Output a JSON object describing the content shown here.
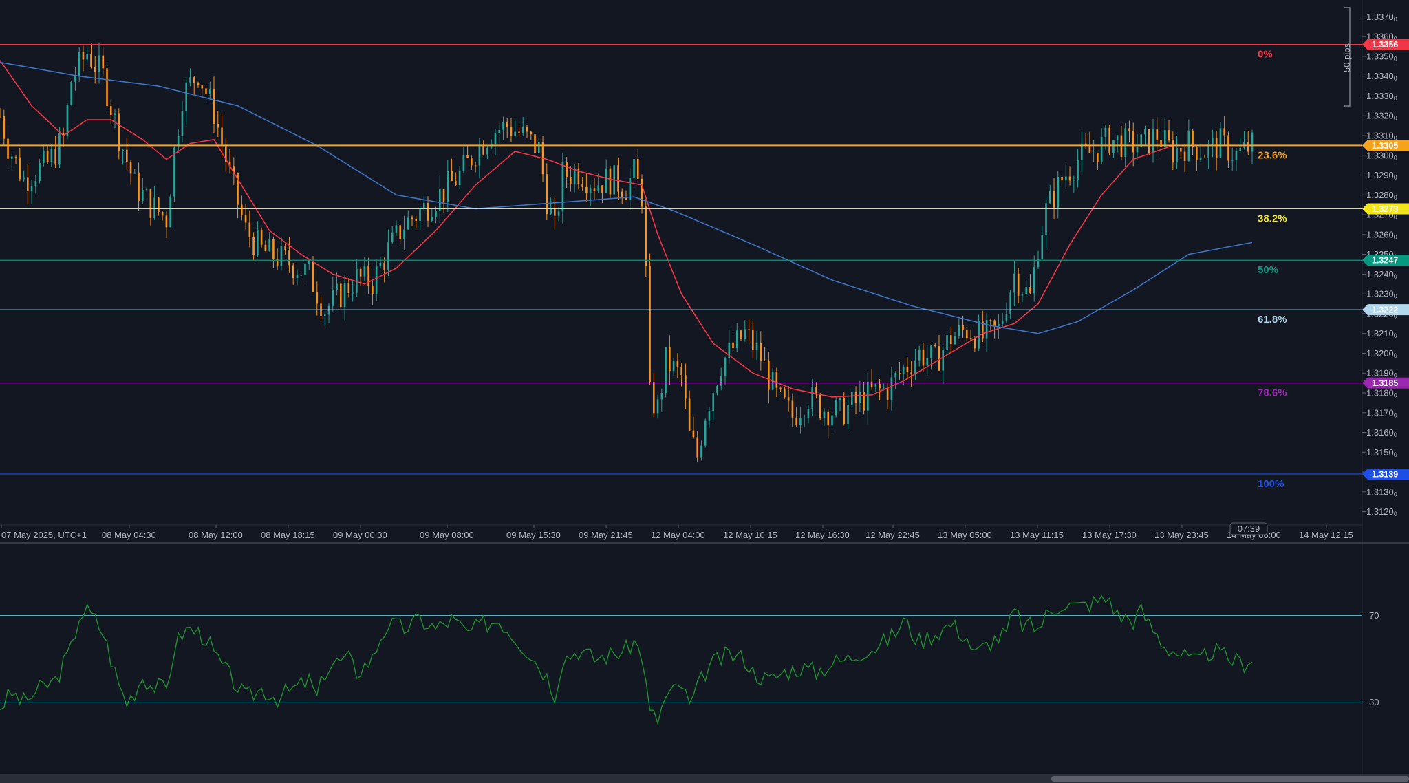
{
  "chart_data": [
    {
      "type": "candlestick",
      "title": "",
      "timezone_label": "07 May 2025, UTC+1",
      "x_ticks": [
        "07 May 2025, UTC+1",
        "08 May 04:30",
        "08 May 12:00",
        "08 May 18:15",
        "09 May 00:30",
        "09 May 08:00",
        "09 May 15:30",
        "09 May 21:45",
        "12 May 04:00",
        "12 May 10:15",
        "12 May 16:30",
        "12 May 22:45",
        "13 May 05:00",
        "13 May 11:15",
        "13 May 17:30",
        "13 May 23:45",
        "14 May 06:00",
        "14 May 12:15"
      ],
      "y_range": [
        1.3115,
        1.3375
      ],
      "y_ticks": [
        "1.3370",
        "1.3360",
        "1.3350",
        "1.3340",
        "1.3330",
        "1.3320",
        "1.3310",
        "1.3300",
        "1.3290",
        "1.3280",
        "1.3270",
        "1.3260",
        "1.3250",
        "1.3240",
        "1.3230",
        "1.3220",
        "1.3210",
        "1.3200",
        "1.3190",
        "1.3180",
        "1.3170",
        "1.3160",
        "1.3150",
        "1.3140",
        "1.3130",
        "1.3120"
      ],
      "tick_suffix": "0",
      "price_path": [
        [
          0,
          1.332
        ],
        [
          2,
          1.3305
        ],
        [
          6,
          1.3288
        ],
        [
          12,
          1.3296
        ],
        [
          16,
          1.3308
        ],
        [
          18,
          1.3338
        ],
        [
          22,
          1.3352
        ],
        [
          26,
          1.334
        ],
        [
          30,
          1.331
        ],
        [
          34,
          1.3285
        ],
        [
          38,
          1.3275
        ],
        [
          42,
          1.3268
        ],
        [
          44,
          1.3302
        ],
        [
          46,
          1.333
        ],
        [
          50,
          1.3342
        ],
        [
          54,
          1.3322
        ],
        [
          58,
          1.329
        ],
        [
          62,
          1.3262
        ],
        [
          66,
          1.3252
        ],
        [
          72,
          1.3247
        ],
        [
          78,
          1.324
        ],
        [
          82,
          1.3222
        ],
        [
          86,
          1.323
        ],
        [
          90,
          1.3238
        ],
        [
          94,
          1.3236
        ],
        [
          98,
          1.3252
        ],
        [
          102,
          1.3265
        ],
        [
          108,
          1.3275
        ],
        [
          112,
          1.3282
        ],
        [
          116,
          1.329
        ],
        [
          120,
          1.3302
        ],
        [
          124,
          1.3312
        ],
        [
          128,
          1.3315
        ],
        [
          132,
          1.331
        ],
        [
          136,
          1.3303
        ],
        [
          138,
          1.3278
        ],
        [
          140,
          1.3262
        ],
        [
          142,
          1.329
        ],
        [
          146,
          1.3292
        ],
        [
          150,
          1.3286
        ],
        [
          154,
          1.3288
        ],
        [
          158,
          1.3284
        ],
        [
          160,
          1.3291
        ],
        [
          162,
          1.328
        ],
        [
          163,
          1.324
        ],
        [
          164,
          1.3178
        ],
        [
          166,
          1.3172
        ],
        [
          168,
          1.3196
        ],
        [
          172,
          1.3188
        ],
        [
          174,
          1.3158
        ],
        [
          176,
          1.3148
        ],
        [
          178,
          1.317
        ],
        [
          182,
          1.3195
        ],
        [
          186,
          1.3205
        ],
        [
          188,
          1.321
        ],
        [
          192,
          1.3198
        ],
        [
          196,
          1.3178
        ],
        [
          200,
          1.3168
        ],
        [
          204,
          1.3178
        ],
        [
          208,
          1.3172
        ],
        [
          212,
          1.317
        ],
        [
          216,
          1.3175
        ],
        [
          220,
          1.318
        ],
        [
          224,
          1.3182
        ],
        [
          228,
          1.3192
        ],
        [
          232,
          1.32
        ],
        [
          236,
          1.3196
        ],
        [
          240,
          1.3208
        ],
        [
          244,
          1.3212
        ],
        [
          248,
          1.3208
        ],
        [
          252,
          1.3212
        ],
        [
          256,
          1.324
        ],
        [
          260,
          1.3228
        ],
        [
          262,
          1.3255
        ],
        [
          264,
          1.3272
        ],
        [
          268,
          1.3288
        ],
        [
          272,
          1.3298
        ],
        [
          276,
          1.3302
        ],
        [
          280,
          1.3308
        ],
        [
          284,
          1.3306
        ],
        [
          288,
          1.3305
        ],
        [
          292,
          1.331
        ],
        [
          296,
          1.3302
        ],
        [
          300,
          1.3306
        ],
        [
          304,
          1.3302
        ],
        [
          308,
          1.3306
        ],
        [
          312,
          1.33
        ],
        [
          316,
          1.3305
        ]
      ],
      "moving_averages": [
        {
          "color": "#f23645",
          "points": [
            [
              0,
              1.3348
            ],
            [
              8,
              1.3325
            ],
            [
              16,
              1.331
            ],
            [
              22,
              1.3318
            ],
            [
              28,
              1.3318
            ],
            [
              36,
              1.3308
            ],
            [
              42,
              1.3298
            ],
            [
              48,
              1.3306
            ],
            [
              54,
              1.3308
            ],
            [
              60,
              1.3288
            ],
            [
              68,
              1.3262
            ],
            [
              76,
              1.325
            ],
            [
              84,
              1.324
            ],
            [
              92,
              1.3235
            ],
            [
              100,
              1.3243
            ],
            [
              110,
              1.3262
            ],
            [
              120,
              1.3285
            ],
            [
              130,
              1.3302
            ],
            [
              138,
              1.3298
            ],
            [
              146,
              1.3292
            ],
            [
              154,
              1.3288
            ],
            [
              162,
              1.3285
            ],
            [
              166,
              1.326
            ],
            [
              172,
              1.323
            ],
            [
              180,
              1.3205
            ],
            [
              190,
              1.319
            ],
            [
              200,
              1.3182
            ],
            [
              210,
              1.3178
            ],
            [
              220,
              1.3179
            ],
            [
              228,
              1.3186
            ],
            [
              238,
              1.3198
            ],
            [
              248,
              1.321
            ],
            [
              256,
              1.3215
            ],
            [
              262,
              1.3225
            ],
            [
              270,
              1.3255
            ],
            [
              278,
              1.328
            ],
            [
              286,
              1.3298
            ],
            [
              296,
              1.3305
            ],
            [
              316,
              1.3305
            ]
          ]
        },
        {
          "color": "#3d73c6",
          "points": [
            [
              0,
              1.3347
            ],
            [
              20,
              1.334
            ],
            [
              40,
              1.3335
            ],
            [
              60,
              1.3325
            ],
            [
              80,
              1.3305
            ],
            [
              100,
              1.328
            ],
            [
              120,
              1.3273
            ],
            [
              140,
              1.3276
            ],
            [
              160,
              1.3279
            ],
            [
              170,
              1.3272
            ],
            [
              190,
              1.3255
            ],
            [
              210,
              1.3237
            ],
            [
              230,
              1.3224
            ],
            [
              250,
              1.3214
            ],
            [
              262,
              1.321
            ],
            [
              272,
              1.3216
            ],
            [
              286,
              1.3232
            ],
            [
              300,
              1.325
            ],
            [
              316,
              1.3256
            ]
          ]
        }
      ],
      "fibonacci": [
        {
          "label": "0%",
          "price": 1.3356,
          "price_label": "1.3356",
          "color": "#f23645"
        },
        {
          "label": "23.6%",
          "price": 1.3305,
          "price_label": "1.3305",
          "color": "#f7a21b"
        },
        {
          "label": "38.2%",
          "price": 1.3273,
          "price_label": "1.3273",
          "color": "#f5e61c"
        },
        {
          "label": "50%",
          "price": 1.3247,
          "price_label": "1.3247",
          "color": "#089981"
        },
        {
          "label": "61.8%",
          "price": 1.3222,
          "price_label": "1.3222",
          "color": "#b2d8ee"
        },
        {
          "label": "78.6%",
          "price": 1.3185,
          "price_label": "1.3185",
          "color": "#9c27b0"
        },
        {
          "label": "100%",
          "price": 1.3139,
          "price_label": "1.3139",
          "color": "#1e4ee8"
        }
      ],
      "measure_label": "50 pips",
      "countdown_label": "07:39",
      "candle_up_color": "#26a69a",
      "candle_down_color": "#f7931e"
    },
    {
      "type": "line",
      "indicator": "oscillator",
      "y_range": [
        0,
        100
      ],
      "levels": [
        70,
        30
      ],
      "level_labels": [
        "70",
        "30"
      ],
      "line_color": "#1f8f2f",
      "points": [
        [
          0,
          28
        ],
        [
          3,
          34
        ],
        [
          6,
          30
        ],
        [
          10,
          36
        ],
        [
          14,
          40
        ],
        [
          18,
          55
        ],
        [
          20,
          70
        ],
        [
          22,
          72
        ],
        [
          24,
          68
        ],
        [
          26,
          62
        ],
        [
          28,
          50
        ],
        [
          30,
          38
        ],
        [
          32,
          30
        ],
        [
          34,
          35
        ],
        [
          36,
          42
        ],
        [
          38,
          38
        ],
        [
          42,
          36
        ],
        [
          44,
          55
        ],
        [
          46,
          62
        ],
        [
          48,
          64
        ],
        [
          52,
          60
        ],
        [
          54,
          52
        ],
        [
          58,
          42
        ],
        [
          62,
          32
        ],
        [
          66,
          36
        ],
        [
          70,
          32
        ],
        [
          74,
          36
        ],
        [
          78,
          40
        ],
        [
          80,
          32
        ],
        [
          82,
          44
        ],
        [
          84,
          48
        ],
        [
          88,
          50
        ],
        [
          90,
          44
        ],
        [
          94,
          50
        ],
        [
          96,
          60
        ],
        [
          98,
          66
        ],
        [
          102,
          64
        ],
        [
          106,
          68
        ],
        [
          110,
          64
        ],
        [
          114,
          68
        ],
        [
          118,
          62
        ],
        [
          122,
          66
        ],
        [
          126,
          68
        ],
        [
          130,
          60
        ],
        [
          134,
          52
        ],
        [
          138,
          42
        ],
        [
          140,
          34
        ],
        [
          142,
          50
        ],
        [
          146,
          54
        ],
        [
          150,
          50
        ],
        [
          154,
          52
        ],
        [
          158,
          54
        ],
        [
          160,
          58
        ],
        [
          162,
          52
        ],
        [
          163,
          38
        ],
        [
          164,
          25
        ],
        [
          166,
          22
        ],
        [
          168,
          32
        ],
        [
          172,
          38
        ],
        [
          174,
          28
        ],
        [
          176,
          36
        ],
        [
          178,
          44
        ],
        [
          180,
          48
        ],
        [
          184,
          52
        ],
        [
          188,
          50
        ],
        [
          190,
          44
        ],
        [
          194,
          40
        ],
        [
          198,
          44
        ],
        [
          202,
          46
        ],
        [
          206,
          44
        ],
        [
          210,
          48
        ],
        [
          214,
          50
        ],
        [
          218,
          54
        ],
        [
          222,
          56
        ],
        [
          226,
          62
        ],
        [
          228,
          68
        ],
        [
          232,
          58
        ],
        [
          236,
          62
        ],
        [
          240,
          66
        ],
        [
          244,
          60
        ],
        [
          246,
          52
        ],
        [
          250,
          58
        ],
        [
          254,
          62
        ],
        [
          256,
          72
        ],
        [
          258,
          66
        ],
        [
          262,
          64
        ],
        [
          264,
          70
        ],
        [
          268,
          76
        ],
        [
          272,
          74
        ],
        [
          276,
          76
        ],
        [
          280,
          78
        ],
        [
          282,
          70
        ],
        [
          286,
          68
        ],
        [
          288,
          72
        ],
        [
          290,
          66
        ],
        [
          294,
          56
        ],
        [
          298,
          52
        ],
        [
          302,
          48
        ],
        [
          306,
          54
        ],
        [
          310,
          50
        ],
        [
          314,
          48
        ],
        [
          316,
          51
        ]
      ]
    }
  ]
}
